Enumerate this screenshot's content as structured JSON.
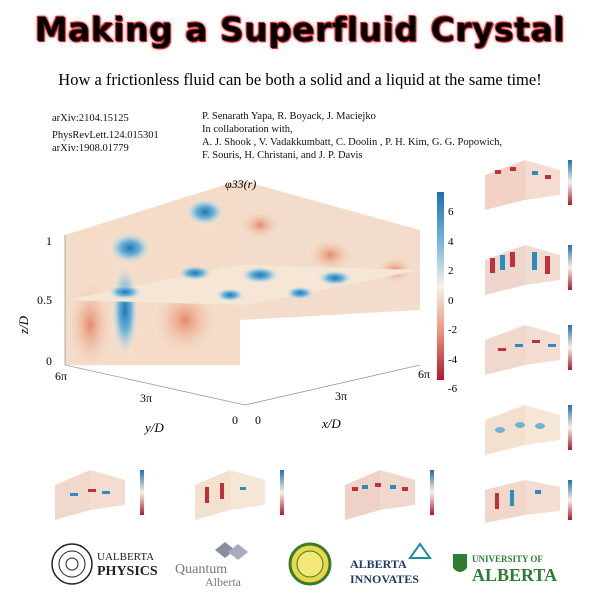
{
  "title": "Making a Superfluid Crystal",
  "subtitle": "How a frictionless fluid can be both a solid and a liquid at the same time!",
  "references": [
    "arXiv:2104.15125",
    "PhysRevLett.124.015301",
    "arXiv:1908.01779"
  ],
  "authors": {
    "main": "P. Senarath Yapa, R. Boyack, J. Maciejko",
    "collab_heading": "In collaboration with,",
    "collab_line1": "A. J. Shook , V. Vadakkumbatt, C. Doolin , P. H. Kim, G. G. Popowich,",
    "collab_line2": "F. Souris, H. Christani, and J. P. Davis"
  },
  "main_plot": {
    "label": "φ33(r)",
    "z_axis_label": "z/D",
    "y_axis_label": "y/D",
    "x_axis_label": "x/D",
    "z_ticks": [
      "1",
      "0.5",
      "0"
    ],
    "y_ticks": [
      "6π",
      "3π",
      "0"
    ],
    "x_ticks": [
      "6π",
      "3π",
      "0"
    ],
    "colorbar_ticks": [
      "6",
      "4",
      "2",
      "0",
      "-2",
      "-4",
      "-6"
    ]
  },
  "logos": {
    "ualberta_physics_line1": "UALBERTA",
    "ualberta_physics_line2": "PHYSICS",
    "quantum_line1": "Quantum",
    "quantum_line2": "Alberta",
    "alberta_innovates_line1": "ALBERTA",
    "alberta_innovates_line2": "INNOVATES",
    "ua_line1": "UNIVERSITY OF",
    "ua_line2": "ALBERTA"
  },
  "colors": {
    "title_glow": "#e53030",
    "colormap_high": "#2b8cbe",
    "colormap_mid": "#f7f1e6",
    "colormap_low": "#c0303a",
    "ua_green": "#2e7d32",
    "alberta_innovates_teal": "#1f8fa0"
  }
}
